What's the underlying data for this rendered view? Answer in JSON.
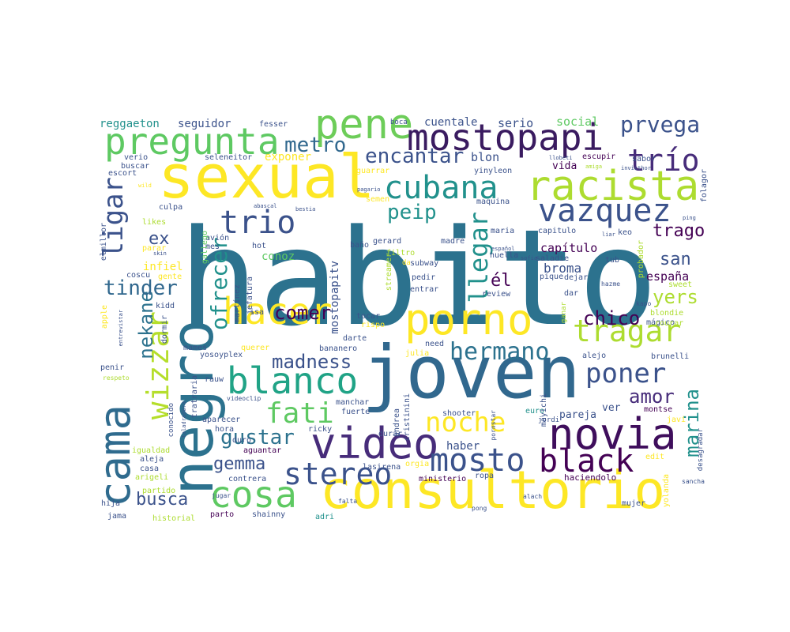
{
  "palette": {
    "c1": "#440154",
    "c2": "#472c7a",
    "c3": "#3b528b",
    "c4": "#2c728e",
    "c5": "#21918c",
    "c6": "#28ae80",
    "c7": "#5ec962",
    "c8": "#addc30",
    "c9": "#fde725"
  },
  "words": [
    "habito",
    "joven",
    "sexual",
    "consultorio",
    "negro",
    "porno",
    "video",
    "novia",
    "cama",
    "pene",
    "pregunta",
    "mostopapi",
    "racista",
    "hacer",
    "blanco",
    "cubana",
    "vazquez",
    "cosa",
    "black",
    "trio",
    "tragar",
    "mosto",
    "stereo",
    "noche",
    "wizzar",
    "fati",
    "poner",
    "trío",
    "ligar",
    "hermano",
    "prvega",
    "metro",
    "encantar",
    "gustar",
    "llegar",
    "madness",
    "ofrecer",
    "comer",
    "chico",
    "peip",
    "nekane",
    "marina",
    "tinder",
    "amor",
    "busca",
    "gemma",
    "trago",
    "yers",
    "san",
    "él",
    "ex",
    "broma",
    "capítulo",
    "mostopapitv",
    "españa",
    "conoz",
    "blon",
    "cuentale",
    "serio",
    "social",
    "reggaeton",
    "seguidor",
    "fesser",
    "boca",
    "exponer",
    "infiel",
    "vida",
    "haber",
    "pareja",
    "ver",
    "montse",
    "euro",
    "haciendolo",
    "ministerio",
    "ropa",
    "lasirena",
    "aguantar",
    "contrera",
    "parto",
    "shainny",
    "adri",
    "historial",
    "jama",
    "hija",
    "partido",
    "arigeli",
    "casa",
    "aleja",
    "igualdad",
    "conocido",
    "aparecer",
    "hora",
    "duro",
    "ricky",
    "manchar",
    "fuerte",
    "durar",
    "shooter",
    "pornstar",
    "jordi",
    "javi",
    "edit",
    "sancha",
    "desagradar",
    "yolanda",
    "mujer",
    "alach",
    "falta",
    "jugar",
    "orgia",
    "pong",
    "andrea",
    "cristinini",
    "mayichi",
    "tratraria",
    "taladradora",
    "videoclip",
    "rauw",
    "yosoyplex",
    "mames",
    "querer",
    "bananero",
    "darte",
    "julia",
    "need",
    "alejo",
    "brunelli",
    "rispo",
    "tocar",
    "isa",
    "martínez",
    "jefatura",
    "streamer",
    "entrar",
    "pedir",
    "review",
    "dar",
    "ganar",
    "kapo",
    "mágico",
    "blondie",
    "sweet",
    "hazme",
    "pique",
    "dejar",
    "saladie",
    "tub",
    "probador",
    "folagor",
    "keo",
    "liar",
    "ping",
    "capitulo",
    "huella",
    "maria",
    "madre",
    "gerard",
    "baño",
    "filtro",
    "subway",
    "da",
    "hot",
    "mes",
    "avión",
    "gallego",
    "skin",
    "parar",
    "likes",
    "culpa",
    "coscu",
    "gente",
    "kidd",
    "dormir",
    "apple",
    "entrevistar",
    "respeto",
    "penir",
    "elmillor",
    "wild",
    "buscar",
    "escort",
    "verio",
    "seleneitor",
    "guarrar",
    "yinyleon",
    "llobeti",
    "amiga",
    "escupir",
    "invicthor",
    "sabor",
    "pagario",
    "semen",
    "maquina",
    "abascal",
    "bestia",
    "sofia",
    "español",
    "rourar"
  ]
}
